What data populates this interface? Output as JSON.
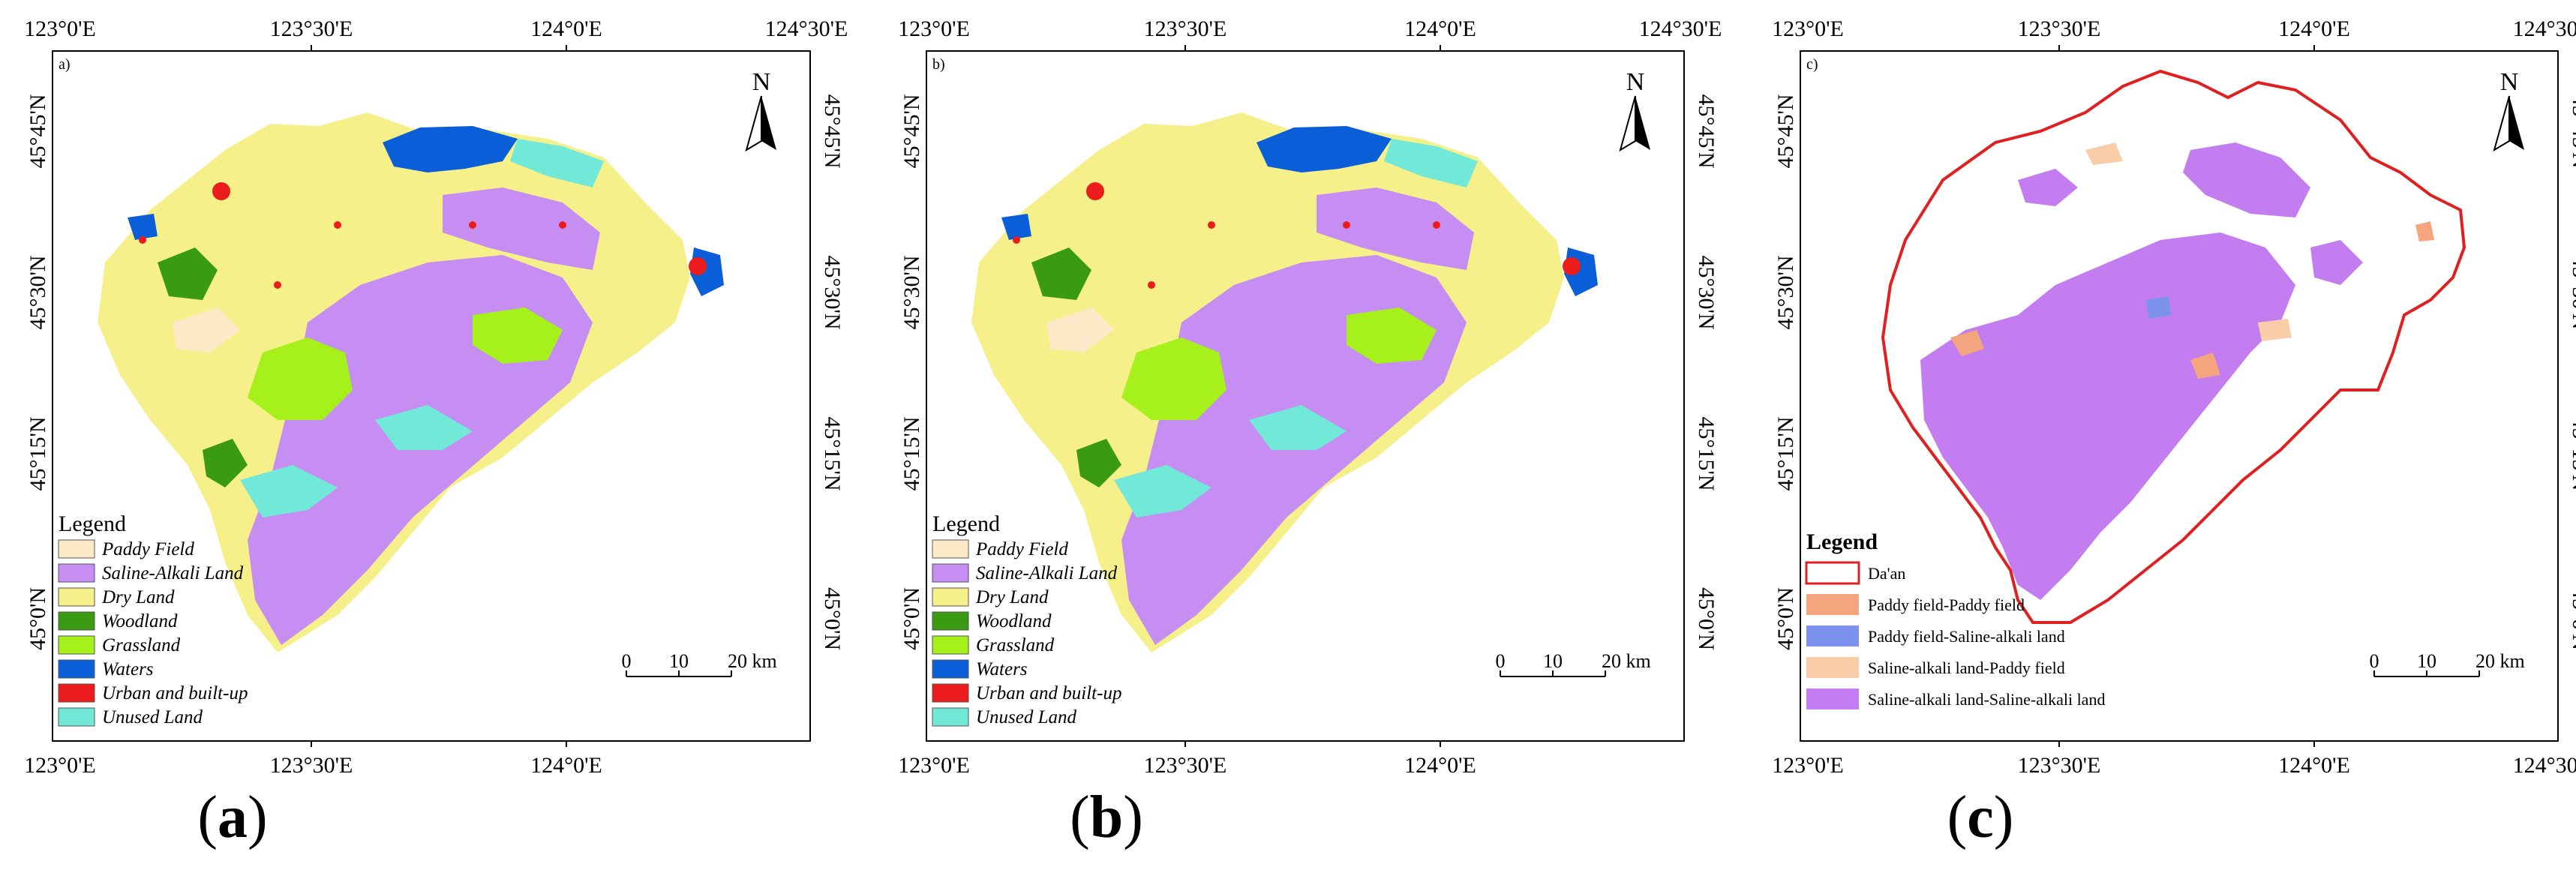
{
  "figure": {
    "panels": [
      {
        "id": "a",
        "tag": "a)",
        "caption_letter": "a",
        "kind": "landuse",
        "legend_title": "Legend",
        "legend_items": [
          {
            "label": "Paddy Field",
            "color": "#fde9c8",
            "style": "italic"
          },
          {
            "label": "Saline-Alkali Land",
            "color": "#c68df2",
            "style": "italic"
          },
          {
            "label": "Dry Land",
            "color": "#f6f08a",
            "style": "italic"
          },
          {
            "label": "Woodland",
            "color": "#3a9b12",
            "style": "italic"
          },
          {
            "label": "Grassland",
            "color": "#a6f01c",
            "style": "italic"
          },
          {
            "label": "Waters",
            "color": "#0a5fd8",
            "style": "italic"
          },
          {
            "label": "Urban and built-up",
            "color": "#ec1c1c",
            "style": "italic"
          },
          {
            "label": "Unused Land",
            "color": "#72e8d8",
            "style": "italic"
          }
        ]
      },
      {
        "id": "b",
        "tag": "b)",
        "caption_letter": "b",
        "kind": "landuse",
        "legend_title": "Legend",
        "legend_items": [
          {
            "label": "Paddy Field",
            "color": "#fde9c8",
            "style": "italic"
          },
          {
            "label": "Saline-Alkali Land",
            "color": "#c68df2",
            "style": "italic"
          },
          {
            "label": "Dry Land",
            "color": "#f6f08a",
            "style": "italic"
          },
          {
            "label": "Woodland",
            "color": "#3a9b12",
            "style": "italic"
          },
          {
            "label": "Grassland",
            "color": "#a6f01c",
            "style": "italic"
          },
          {
            "label": "Waters",
            "color": "#0a5fd8",
            "style": "italic"
          },
          {
            "label": "Urban and built-up",
            "color": "#ec1c1c",
            "style": "italic"
          },
          {
            "label": "Unused Land",
            "color": "#72e8d8",
            "style": "italic"
          }
        ]
      },
      {
        "id": "c",
        "tag": "c)",
        "caption_letter": "c",
        "kind": "transition",
        "legend_title": "Legend",
        "boundary": {
          "label": "Da'an",
          "color": "#e02020"
        },
        "legend_items": [
          {
            "label": "Paddy field-Paddy field",
            "color": "#f5a57e",
            "style": "normal"
          },
          {
            "label": "Paddy field-Saline-alkali land",
            "color": "#7b93ec",
            "style": "normal"
          },
          {
            "label": "Saline-alkali land-Paddy field",
            "color": "#f8cda8",
            "style": "normal"
          },
          {
            "label": "Saline-alkali land-Saline-alkali land",
            "color": "#c47df0",
            "style": "normal"
          }
        ]
      }
    ],
    "top_lon_labels": [
      "123°0'E",
      "123°30'E",
      "124°0'E",
      "124°30'E"
    ],
    "bottom_lon_labels": [
      "123°0'E",
      "123°30'E",
      "124°0'E",
      "124°30'E"
    ],
    "left_lat_labels": [
      "45°45'N",
      "45°30'N",
      "45°15'N",
      "45°0'N"
    ],
    "right_lat_labels": [
      "45°45'N",
      "45°30'N",
      "45°15'N",
      "45°0'N"
    ],
    "north_label": "N",
    "scale_labels": [
      "0",
      "10",
      "20 km"
    ]
  }
}
